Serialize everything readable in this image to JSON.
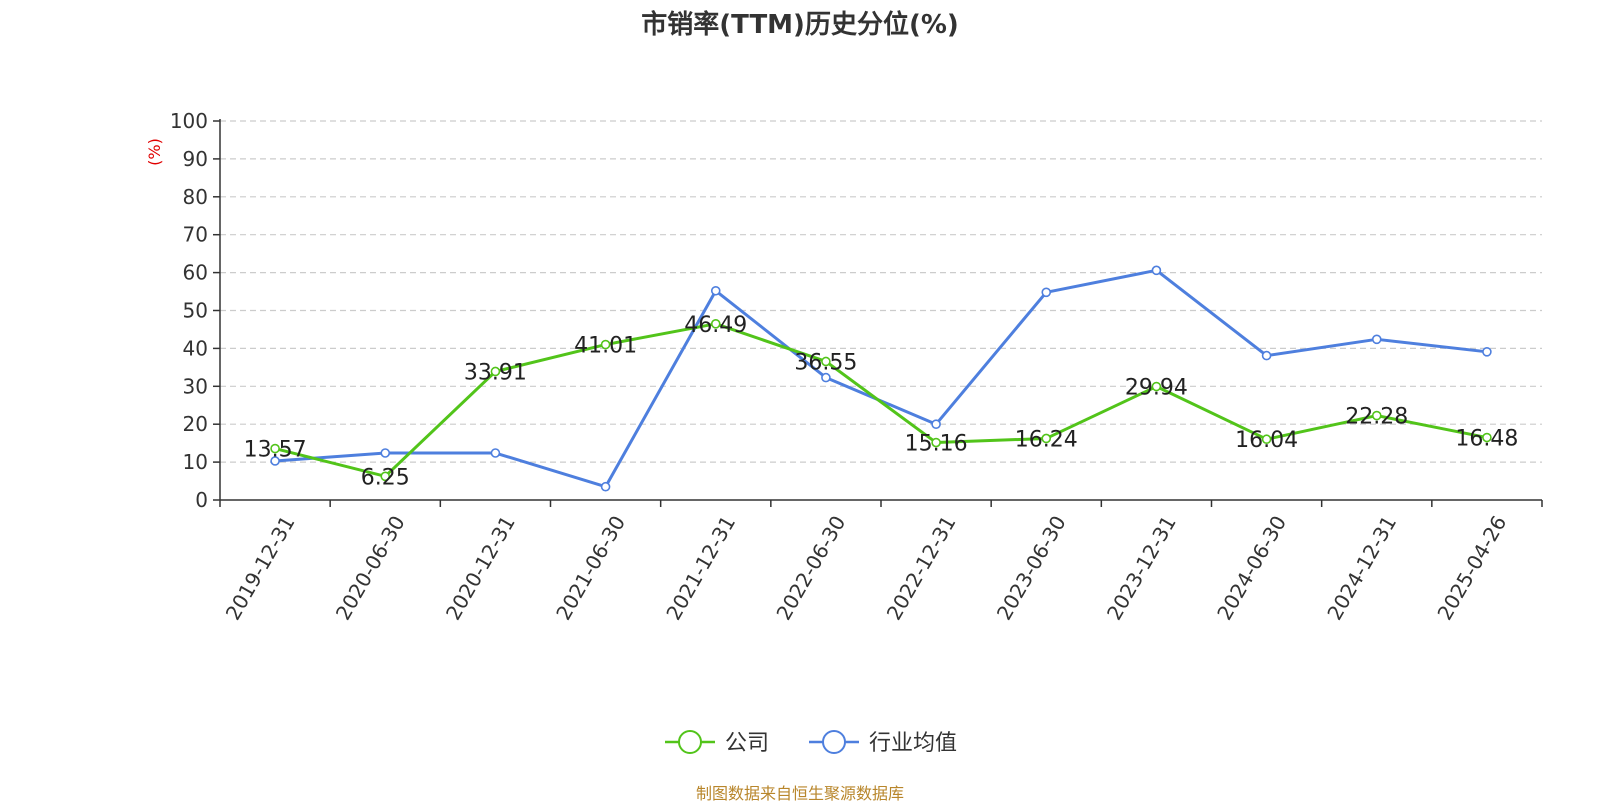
{
  "chart_data": {
    "type": "line",
    "title": "市销率(TTM)历史分位(%)",
    "ylabel": "(%)",
    "xlabel": "",
    "ylim": [
      0,
      100
    ],
    "yticks": [
      0,
      10,
      20,
      30,
      40,
      50,
      60,
      70,
      80,
      90,
      100
    ],
    "grid": true,
    "legend_position": "bottom-center",
    "categories": [
      "2019-12-31",
      "2020-06-30",
      "2020-12-31",
      "2021-06-30",
      "2021-12-31",
      "2022-06-30",
      "2022-12-31",
      "2023-06-30",
      "2023-12-31",
      "2024-06-30",
      "2024-12-31",
      "2025-04-26"
    ],
    "series": [
      {
        "name": "公司",
        "color": "#52c41a",
        "values": [
          13.57,
          6.25,
          33.91,
          41.01,
          46.49,
          36.55,
          15.16,
          16.24,
          29.94,
          16.04,
          22.28,
          16.48
        ],
        "labels": [
          "13.57",
          "6.25",
          "33.91",
          "41.01",
          "46.49",
          "36.55",
          "15.16",
          "16.24",
          "29.94",
          "16.04",
          "22.28",
          "16.48"
        ]
      },
      {
        "name": "行业均值",
        "color": "#4e7fde",
        "values": [
          10.3,
          12.4,
          12.4,
          3.5,
          55.2,
          32.3,
          20.0,
          54.8,
          60.6,
          38.1,
          42.4,
          39.1
        ]
      }
    ]
  },
  "source_note": "制图数据来自恒生聚源数据库"
}
